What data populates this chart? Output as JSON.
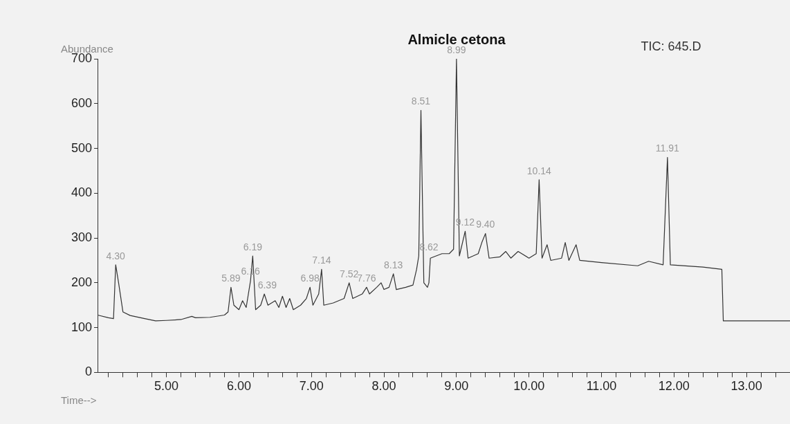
{
  "chart_data": {
    "type": "line",
    "title": "Almicle cetona",
    "xlabel": "Time-->",
    "ylabel": "Abundance",
    "annotations": [
      "TIC: 645.D",
      {
        "text": "4.30",
        "x": 4.3,
        "y": 240
      },
      {
        "text": "5.89",
        "x": 5.89,
        "y": 190
      },
      {
        "text": "6.16",
        "x": 6.16,
        "y": 205
      },
      {
        "text": "6.19",
        "x": 6.19,
        "y": 260
      },
      {
        "text": "6.39",
        "x": 6.39,
        "y": 175
      },
      {
        "text": "6.98",
        "x": 6.98,
        "y": 190
      },
      {
        "text": "7.14",
        "x": 7.14,
        "y": 230
      },
      {
        "text": "7.52",
        "x": 7.52,
        "y": 200
      },
      {
        "text": "7.76",
        "x": 7.76,
        "y": 190
      },
      {
        "text": "8.13",
        "x": 8.13,
        "y": 220
      },
      {
        "text": "8.51",
        "x": 8.51,
        "y": 585
      },
      {
        "text": "8.62",
        "x": 8.62,
        "y": 260
      },
      {
        "text": "8.99",
        "x": 9.0,
        "y": 700
      },
      {
        "text": "9.12",
        "x": 9.12,
        "y": 315
      },
      {
        "text": "9.40",
        "x": 9.4,
        "y": 310
      },
      {
        "text": "10.14",
        "x": 10.14,
        "y": 430
      },
      {
        "text": "11.91",
        "x": 11.91,
        "y": 480
      }
    ],
    "x": [
      4.05,
      4.2,
      4.27,
      4.3,
      4.34,
      4.4,
      4.5,
      4.7,
      4.85,
      5.0,
      5.2,
      5.35,
      5.4,
      5.6,
      5.8,
      5.85,
      5.89,
      5.93,
      6.0,
      6.05,
      6.1,
      6.16,
      6.19,
      6.23,
      6.3,
      6.35,
      6.4,
      6.5,
      6.55,
      6.6,
      6.65,
      6.7,
      6.75,
      6.85,
      6.93,
      6.98,
      7.02,
      7.1,
      7.14,
      7.17,
      7.3,
      7.45,
      7.52,
      7.57,
      7.7,
      7.76,
      7.8,
      7.9,
      7.96,
      8.0,
      8.07,
      8.13,
      8.17,
      8.3,
      8.4,
      8.45,
      8.48,
      8.51,
      8.55,
      8.6,
      8.62,
      8.64,
      8.8,
      8.9,
      8.96,
      9.0,
      9.04,
      9.12,
      9.16,
      9.3,
      9.35,
      9.4,
      9.45,
      9.6,
      9.68,
      9.75,
      9.85,
      10.0,
      10.1,
      10.14,
      10.18,
      10.25,
      10.3,
      10.45,
      10.5,
      10.55,
      10.65,
      10.7,
      11.0,
      11.5,
      11.65,
      11.85,
      11.91,
      11.95,
      12.4,
      12.66,
      12.68,
      13.6
    ],
    "series": [
      {
        "color": "#333333",
        "values": [
          128,
          122,
          120,
          240,
          200,
          135,
          127,
          120,
          115,
          116,
          118,
          125,
          122,
          123,
          128,
          135,
          190,
          150,
          140,
          160,
          145,
          205,
          260,
          140,
          150,
          175,
          150,
          160,
          145,
          170,
          145,
          165,
          140,
          150,
          165,
          190,
          150,
          175,
          230,
          150,
          155,
          165,
          200,
          165,
          175,
          190,
          175,
          190,
          200,
          185,
          190,
          220,
          185,
          190,
          195,
          230,
          260,
          585,
          200,
          190,
          200,
          255,
          265,
          265,
          275,
          700,
          260,
          315,
          255,
          265,
          290,
          310,
          255,
          258,
          270,
          255,
          270,
          255,
          265,
          430,
          255,
          285,
          250,
          255,
          290,
          250,
          285,
          250,
          245,
          238,
          248,
          240,
          480,
          240,
          235,
          230,
          115,
          115
        ]
      }
    ],
    "xlim": [
      4.05,
      13.6
    ],
    "xticks": [
      {
        "value": 4.2,
        "label": null
      },
      {
        "value": 4.4,
        "label": null
      },
      {
        "value": 4.6,
        "label": null
      },
      {
        "value": 4.8,
        "label": null
      },
      {
        "value": 5,
        "label": "5.00"
      },
      {
        "value": 5.2,
        "label": null
      },
      {
        "value": 5.4,
        "label": null
      },
      {
        "value": 5.6,
        "label": null
      },
      {
        "value": 5.8,
        "label": null
      },
      {
        "value": 6,
        "label": "6.00"
      },
      {
        "value": 6.2,
        "label": null
      },
      {
        "value": 6.4,
        "label": null
      },
      {
        "value": 6.6,
        "label": null
      },
      {
        "value": 6.8,
        "label": null
      },
      {
        "value": 7,
        "label": "7.00"
      },
      {
        "value": 7.2,
        "label": null
      },
      {
        "value": 7.4,
        "label": null
      },
      {
        "value": 7.6,
        "label": null
      },
      {
        "value": 7.8,
        "label": null
      },
      {
        "value": 8,
        "label": "8.00"
      },
      {
        "value": 8.2,
        "label": null
      },
      {
        "value": 8.4,
        "label": null
      },
      {
        "value": 8.6,
        "label": null
      },
      {
        "value": 8.8,
        "label": null
      },
      {
        "value": 9,
        "label": "9.00"
      },
      {
        "value": 9.2,
        "label": null
      },
      {
        "value": 9.4,
        "label": null
      },
      {
        "value": 9.6,
        "label": null
      },
      {
        "value": 9.8,
        "label": null
      },
      {
        "value": 10,
        "label": "10.00"
      },
      {
        "value": 10.2,
        "label": null
      },
      {
        "value": 10.4,
        "label": null
      },
      {
        "value": 10.6,
        "label": null
      },
      {
        "value": 10.8,
        "label": null
      },
      {
        "value": 11,
        "label": "11.00"
      },
      {
        "value": 11.2,
        "label": null
      },
      {
        "value": 11.4,
        "label": null
      },
      {
        "value": 11.6,
        "label": null
      },
      {
        "value": 11.8,
        "label": null
      },
      {
        "value": 12,
        "label": "12.00"
      },
      {
        "value": 12.2,
        "label": null
      },
      {
        "value": 12.4,
        "label": null
      },
      {
        "value": 12.6,
        "label": null
      },
      {
        "value": 12.8,
        "label": null
      },
      {
        "value": 13,
        "label": "13.00"
      },
      {
        "value": 13.2,
        "label": null
      },
      {
        "value": 13.4,
        "label": null
      }
    ],
    "ylim": [
      0,
      700
    ],
    "yticks": [
      0,
      100,
      200,
      300,
      400,
      500,
      600,
      700
    ],
    "grid": false,
    "legend": false,
    "marker": "none",
    "line_style": "solid"
  }
}
